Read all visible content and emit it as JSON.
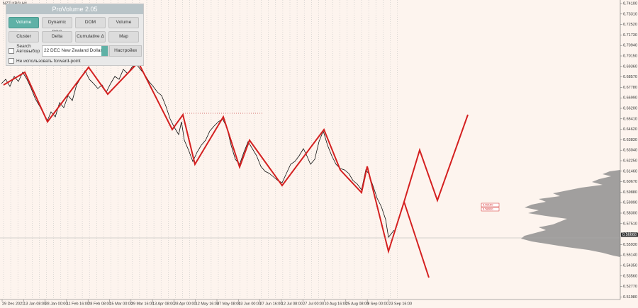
{
  "window": {
    "symbol": "NZTU(R0),H4"
  },
  "panel": {
    "title": "ProVolume 2.05",
    "buttons": [
      "Volume Profile",
      "Dynamic POC",
      "DOM",
      "Volume",
      "Cluster Search",
      "Delta",
      "Cumulative Δ",
      "Map"
    ],
    "auto_select": "Автовыбор",
    "instrument": "22 DEC New Zealand Dollar",
    "settings": "Настройки",
    "forward_point": "Не использовать forward-point"
  },
  "price_axis": {
    "ylim": [
      0.741,
      0.5198
    ],
    "ticks": [
      {
        "value": 0.741,
        "label": "0.74100"
      },
      {
        "value": 0.7331,
        "label": "0.73310"
      },
      {
        "value": 0.7252,
        "label": "0.72520"
      },
      {
        "value": 0.7173,
        "label": "0.71730"
      },
      {
        "value": 0.7094,
        "label": "0.70940"
      },
      {
        "value": 0.7015,
        "label": "0.70150"
      },
      {
        "value": 0.6936,
        "label": "0.69360"
      },
      {
        "value": 0.6857,
        "label": "0.68570"
      },
      {
        "value": 0.6778,
        "label": "0.67780"
      },
      {
        "value": 0.6699,
        "label": "0.66990"
      },
      {
        "value": 0.662,
        "label": "0.66200"
      },
      {
        "value": 0.6541,
        "label": "0.65410"
      },
      {
        "value": 0.6462,
        "label": "0.64620"
      },
      {
        "value": 0.6383,
        "label": "0.63830"
      },
      {
        "value": 0.6304,
        "label": "0.63040"
      },
      {
        "value": 0.6225,
        "label": "0.62250"
      },
      {
        "value": 0.6146,
        "label": "0.61460"
      },
      {
        "value": 0.6067,
        "label": "0.60670"
      },
      {
        "value": 0.5988,
        "label": "0.59880"
      },
      {
        "value": 0.5909,
        "label": "0.59090"
      },
      {
        "value": 0.583,
        "label": "0.58300"
      },
      {
        "value": 0.5751,
        "label": "0.57510"
      },
      {
        "value": 0.5672,
        "label": "0.56720"
      },
      {
        "value": 0.5593,
        "label": "0.55930"
      },
      {
        "value": 0.5514,
        "label": "0.55140"
      },
      {
        "value": 0.5435,
        "label": "0.54350"
      },
      {
        "value": 0.5356,
        "label": "0.53560"
      },
      {
        "value": 0.5277,
        "label": "0.52770"
      },
      {
        "value": 0.5198,
        "label": "0.51980"
      }
    ],
    "current": {
      "value": 0.56668,
      "label": "0.56668"
    }
  },
  "level_labels": [
    "0.59150",
    "0.58930"
  ],
  "date_axis": [
    "29 Dec 2021",
    "13 Jan 08:00",
    "28 Jan 00:00",
    "11 Feb 16:00",
    "28 Feb 08:00",
    "15 Mar 00:00",
    "29 Mar 16:00",
    "13 Apr 08:00",
    "28 Apr 00:00",
    "12 May 16:00",
    "27 May 08:00",
    "13 Jun 00:00",
    "27 Jun 16:00",
    "12 Jul 08:00",
    "27 Jul 00:00",
    "10 Aug 16:00",
    "25 Aug 08:00",
    "9 Sep 00:00",
    "23 Sep 16:00"
  ]
}
